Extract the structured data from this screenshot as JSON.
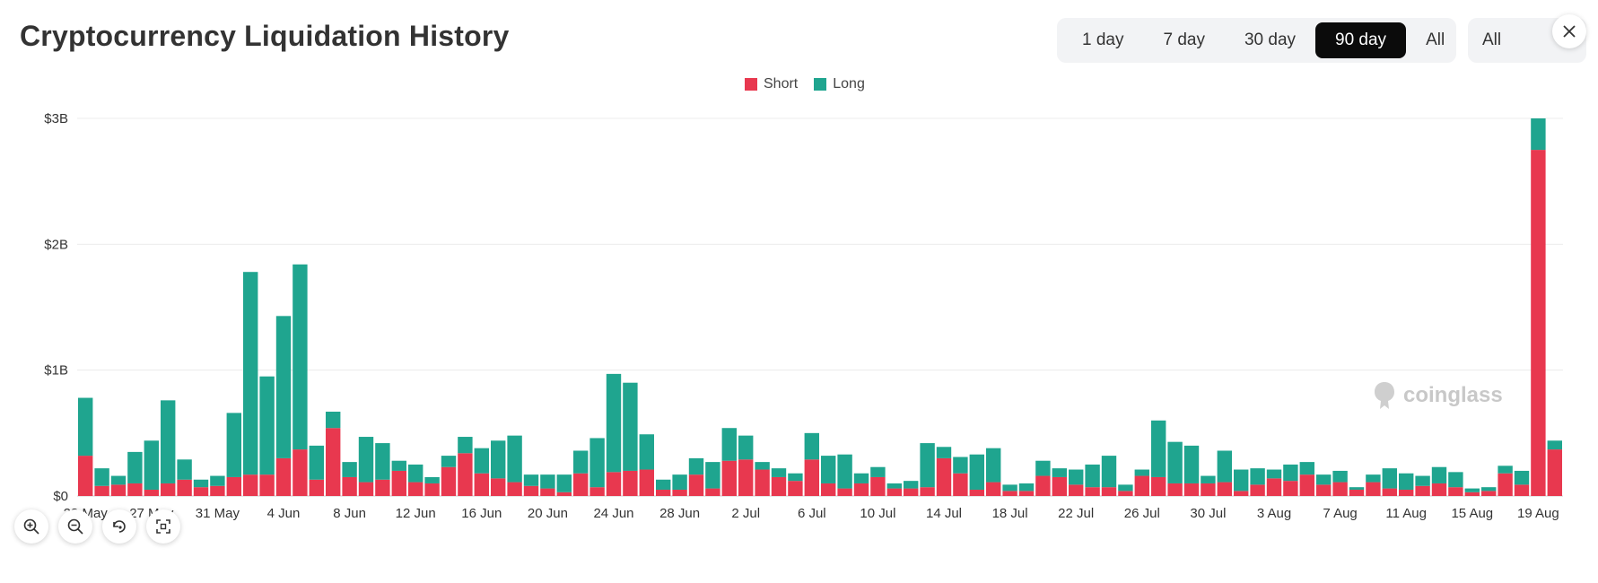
{
  "header": {
    "title": "Cryptocurrency Liquidation History"
  },
  "range_buttons": [
    "1 day",
    "7 day",
    "30 day",
    "90 day",
    "All"
  ],
  "active_range": "90 day",
  "select": {
    "value": "All"
  },
  "legend": {
    "short": "Short",
    "long": "Long"
  },
  "watermark": "coinglass",
  "colors": {
    "short": "#e8384f",
    "long": "#1fa58f",
    "active_button": "#0b0b0b"
  },
  "icons": {
    "close": "close-icon",
    "zoom_in": "zoom-in-icon",
    "zoom_out": "zoom-out-icon",
    "reset": "reset-icon",
    "fullscreen": "fullscreen-icon"
  },
  "chart_data": {
    "type": "bar",
    "stacked": true,
    "title": "",
    "xlabel": "",
    "ylabel": "",
    "ylim": [
      0,
      3000000000
    ],
    "y_ticks": [
      {
        "value": 0,
        "label": "$0"
      },
      {
        "value": 1000000000,
        "label": "$1B"
      },
      {
        "value": 2000000000,
        "label": "$2B"
      },
      {
        "value": 3000000000,
        "label": "$3B"
      }
    ],
    "x_tick_labels": [
      "23 May",
      "27 May",
      "31 May",
      "4 Jun",
      "8 Jun",
      "12 Jun",
      "16 Jun",
      "20 Jun",
      "24 Jun",
      "28 Jun",
      "2 Jul",
      "6 Jul",
      "10 Jul",
      "14 Jul",
      "18 Jul",
      "22 Jul",
      "26 Jul",
      "30 Jul",
      "3 Aug",
      "7 Aug",
      "11 Aug",
      "15 Aug",
      "19 Aug"
    ],
    "first_date": "2024-05-23",
    "grid": true,
    "legend_position": "top-center",
    "series": [
      {
        "name": "Short",
        "values": [
          320,
          80,
          90,
          100,
          50,
          100,
          130,
          70,
          80,
          150,
          170,
          170,
          300,
          370,
          130,
          540,
          150,
          110,
          130,
          200,
          110,
          100,
          230,
          340,
          180,
          140,
          110,
          80,
          60,
          30,
          180,
          70,
          190,
          200,
          210,
          50,
          50,
          170,
          60,
          280,
          290,
          210,
          150,
          120,
          290,
          100,
          60,
          100,
          150,
          60,
          60,
          70,
          300,
          180,
          50,
          110,
          40,
          40,
          160,
          150,
          90,
          70,
          70,
          40,
          160,
          150,
          100,
          100,
          100,
          110,
          40,
          90,
          140,
          120,
          170,
          90,
          110,
          50,
          110,
          60,
          50,
          80,
          100,
          70,
          30,
          40,
          180,
          90,
          2750,
          370
        ]
      },
      {
        "name": "Long",
        "values": [
          460,
          140,
          70,
          250,
          390,
          660,
          160,
          60,
          80,
          510,
          1610,
          780,
          1130,
          1470,
          270,
          130,
          120,
          360,
          290,
          80,
          140,
          50,
          90,
          130,
          200,
          300,
          370,
          90,
          110,
          140,
          180,
          390,
          780,
          700,
          280,
          80,
          120,
          130,
          210,
          260,
          190,
          60,
          70,
          60,
          210,
          220,
          270,
          80,
          80,
          40,
          60,
          350,
          90,
          130,
          280,
          270,
          50,
          60,
          120,
          70,
          120,
          180,
          250,
          50,
          50,
          450,
          330,
          300,
          60,
          250,
          170,
          130,
          70,
          130,
          100,
          80,
          90,
          20,
          60,
          160,
          130,
          80,
          130,
          120,
          30,
          30,
          60,
          110,
          250,
          70
        ]
      }
    ]
  }
}
